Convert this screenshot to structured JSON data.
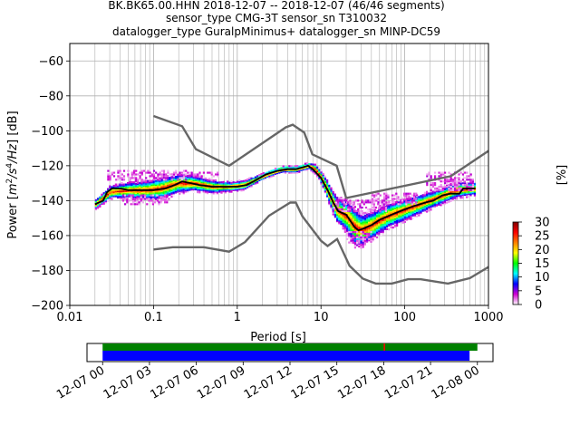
{
  "title_lines": [
    "BK.BK65.00.HHN   2018-12-07 -- 2018-12-07  (46/46 segments)",
    "sensor_type CMG-3T sensor_sn T310032",
    "datalogger_type GuralpMinimus+ datalogger_sn MINP-DC59"
  ],
  "chart_data": {
    "type": "heatmap",
    "xlabel": "Period [s]",
    "ylabel_parts": [
      "Power [",
      "m",
      "2",
      "/s",
      "4",
      "/Hz",
      "] [dB]"
    ],
    "x_scale": "log",
    "xlim": [
      0.01,
      1000
    ],
    "ylim": [
      -200,
      -50
    ],
    "x_ticks": [
      {
        "value": 0.01,
        "label": "0.01"
      },
      {
        "value": 0.1,
        "label": "0.1"
      },
      {
        "value": 1,
        "label": "1"
      },
      {
        "value": 10,
        "label": "10"
      },
      {
        "value": 100,
        "label": "100"
      },
      {
        "value": 1000,
        "label": "1000"
      }
    ],
    "y_ticks": [
      {
        "value": -60,
        "label": "−60"
      },
      {
        "value": -80,
        "label": "−80"
      },
      {
        "value": -100,
        "label": "−100"
      },
      {
        "value": -120,
        "label": "−120"
      },
      {
        "value": -140,
        "label": "−140"
      },
      {
        "value": -160,
        "label": "−160"
      },
      {
        "value": -180,
        "label": "−180"
      },
      {
        "value": -200,
        "label": "−200"
      }
    ],
    "grid": true,
    "noise_models": [
      {
        "color": "#666666",
        "points": [
          [
            0.1,
            -91.5
          ],
          [
            0.22,
            -97.4
          ],
          [
            0.32,
            -110.5
          ],
          [
            0.8,
            -120
          ],
          [
            3.8,
            -98
          ],
          [
            4.6,
            -96.5
          ],
          [
            6.3,
            -101
          ],
          [
            7.9,
            -113.5
          ],
          [
            15.4,
            -120
          ],
          [
            20,
            -138.5
          ],
          [
            354.8,
            -126
          ],
          [
            1000,
            -111.5
          ]
        ]
      },
      {
        "color": "#666666",
        "points": [
          [
            0.1,
            -168
          ],
          [
            0.17,
            -166.7
          ],
          [
            0.4,
            -166.7
          ],
          [
            0.8,
            -169.2
          ],
          [
            1.24,
            -163.7
          ],
          [
            2.4,
            -148.6
          ],
          [
            4.3,
            -141.1
          ],
          [
            5.0,
            -141.1
          ],
          [
            6.0,
            -149
          ],
          [
            10,
            -163
          ],
          [
            12,
            -166
          ],
          [
            15.6,
            -162
          ],
          [
            21.9,
            -177.3
          ],
          [
            31.6,
            -184.7
          ],
          [
            45,
            -187.5
          ],
          [
            70,
            -187.5
          ],
          [
            110,
            -185
          ],
          [
            154,
            -185
          ],
          [
            328,
            -187.5
          ],
          [
            600,
            -184.4
          ],
          [
            1000,
            -178
          ]
        ]
      }
    ],
    "mode_curve": {
      "color": "#000000",
      "points": [
        [
          0.02,
          -142
        ],
        [
          0.025,
          -140
        ],
        [
          0.028,
          -135
        ],
        [
          0.032,
          -133
        ],
        [
          0.04,
          -133
        ],
        [
          0.05,
          -134
        ],
        [
          0.07,
          -134
        ],
        [
          0.1,
          -134
        ],
        [
          0.14,
          -133
        ],
        [
          0.18,
          -131
        ],
        [
          0.22,
          -129
        ],
        [
          0.28,
          -130
        ],
        [
          0.35,
          -131
        ],
        [
          0.5,
          -132
        ],
        [
          0.8,
          -132
        ],
        [
          1.0,
          -132
        ],
        [
          1.3,
          -131
        ],
        [
          1.7,
          -128
        ],
        [
          2.2,
          -125
        ],
        [
          3,
          -123
        ],
        [
          4,
          -122
        ],
        [
          5,
          -122
        ],
        [
          6,
          -121
        ],
        [
          7,
          -120
        ],
        [
          8,
          -122
        ],
        [
          10,
          -127
        ],
        [
          12,
          -134
        ],
        [
          14,
          -141
        ],
        [
          16,
          -146
        ],
        [
          20,
          -148
        ],
        [
          25,
          -155
        ],
        [
          28,
          -157
        ],
        [
          32,
          -156
        ],
        [
          40,
          -154
        ],
        [
          50,
          -151
        ],
        [
          70,
          -148
        ],
        [
          100,
          -145
        ],
        [
          130,
          -143
        ],
        [
          180,
          -141
        ],
        [
          220,
          -140
        ],
        [
          280,
          -137
        ],
        [
          350,
          -136
        ],
        [
          450,
          -136
        ],
        [
          500,
          -133
        ],
        [
          700,
          -133
        ]
      ]
    },
    "density_band": {
      "x": [
        0.02,
        0.03,
        0.05,
        0.08,
        0.12,
        0.2,
        0.3,
        0.5,
        0.8,
        1.2,
        1.8,
        2.5,
        3.5,
        5,
        7,
        8.5,
        10,
        12,
        15,
        20,
        25,
        30,
        40,
        60,
        100,
        150,
        250,
        400,
        700
      ],
      "center": [
        -142,
        -135,
        -134,
        -134,
        -133,
        -130,
        -130,
        -132,
        -132,
        -131,
        -127,
        -124,
        -122,
        -122,
        -120,
        -122,
        -127,
        -135,
        -145,
        -149,
        -155,
        -157,
        -154,
        -149,
        -145,
        -142,
        -138,
        -134,
        -133
      ],
      "half_width": [
        3,
        4,
        5,
        6,
        7,
        6,
        5,
        4,
        3,
        3,
        2,
        2,
        2,
        2,
        2,
        3,
        4,
        6,
        8,
        10,
        12,
        10,
        9,
        8,
        7,
        6,
        5,
        5,
        4
      ]
    },
    "outlier_clusters": [
      {
        "x_range": [
          0.028,
          0.25
        ],
        "y_range": [
          -128,
          -123
        ]
      },
      {
        "x_range": [
          0.25,
          0.6
        ],
        "y_range": [
          -126,
          -124
        ]
      },
      {
        "x_range": [
          14,
          60
        ],
        "y_range": [
          -146,
          -140
        ]
      },
      {
        "x_range": [
          40,
          140
        ],
        "y_range": [
          -142,
          -136
        ]
      },
      {
        "x_range": [
          180,
          650
        ],
        "y_range": [
          -134,
          -124
        ]
      },
      {
        "x_range": [
          20,
          40
        ],
        "y_range": [
          -164,
          -158
        ]
      },
      {
        "x_range": [
          0.04,
          0.15
        ],
        "y_range": [
          -142,
          -137
        ]
      }
    ]
  },
  "colorbar": {
    "label": "[%]",
    "min": 0,
    "max": 30,
    "ticks": [
      {
        "value": 0,
        "label": "0"
      },
      {
        "value": 5,
        "label": "5"
      },
      {
        "value": 10,
        "label": "10"
      },
      {
        "value": 15,
        "label": "15"
      },
      {
        "value": 20,
        "label": "20"
      },
      {
        "value": 25,
        "label": "25"
      },
      {
        "value": 30,
        "label": "30"
      }
    ],
    "stops": [
      "#ffffff",
      "#d000d0",
      "#0000ff",
      "#00ffff",
      "#00ff00",
      "#ffff00",
      "#ff8000",
      "#ff0000",
      "#800000"
    ]
  },
  "timeline": {
    "range_hours": [
      -1,
      25
    ],
    "data_bar": {
      "start_hour": 0,
      "end_hour": 24,
      "color": "#008000"
    },
    "segments_bar": {
      "start_hour": 0,
      "end_hour": 23.5,
      "color": "#0000ff"
    },
    "gap_marker": {
      "hour": 18,
      "color": "#ff0000"
    },
    "ticks": [
      {
        "hour": 0,
        "label": "12-07 00"
      },
      {
        "hour": 3,
        "label": "12-07 03"
      },
      {
        "hour": 6,
        "label": "12-07 06"
      },
      {
        "hour": 9,
        "label": "12-07 09"
      },
      {
        "hour": 12,
        "label": "12-07 12"
      },
      {
        "hour": 15,
        "label": "12-07 15"
      },
      {
        "hour": 18,
        "label": "12-07 18"
      },
      {
        "hour": 21,
        "label": "12-07 21"
      },
      {
        "hour": 24,
        "label": "12-08 00"
      }
    ]
  }
}
